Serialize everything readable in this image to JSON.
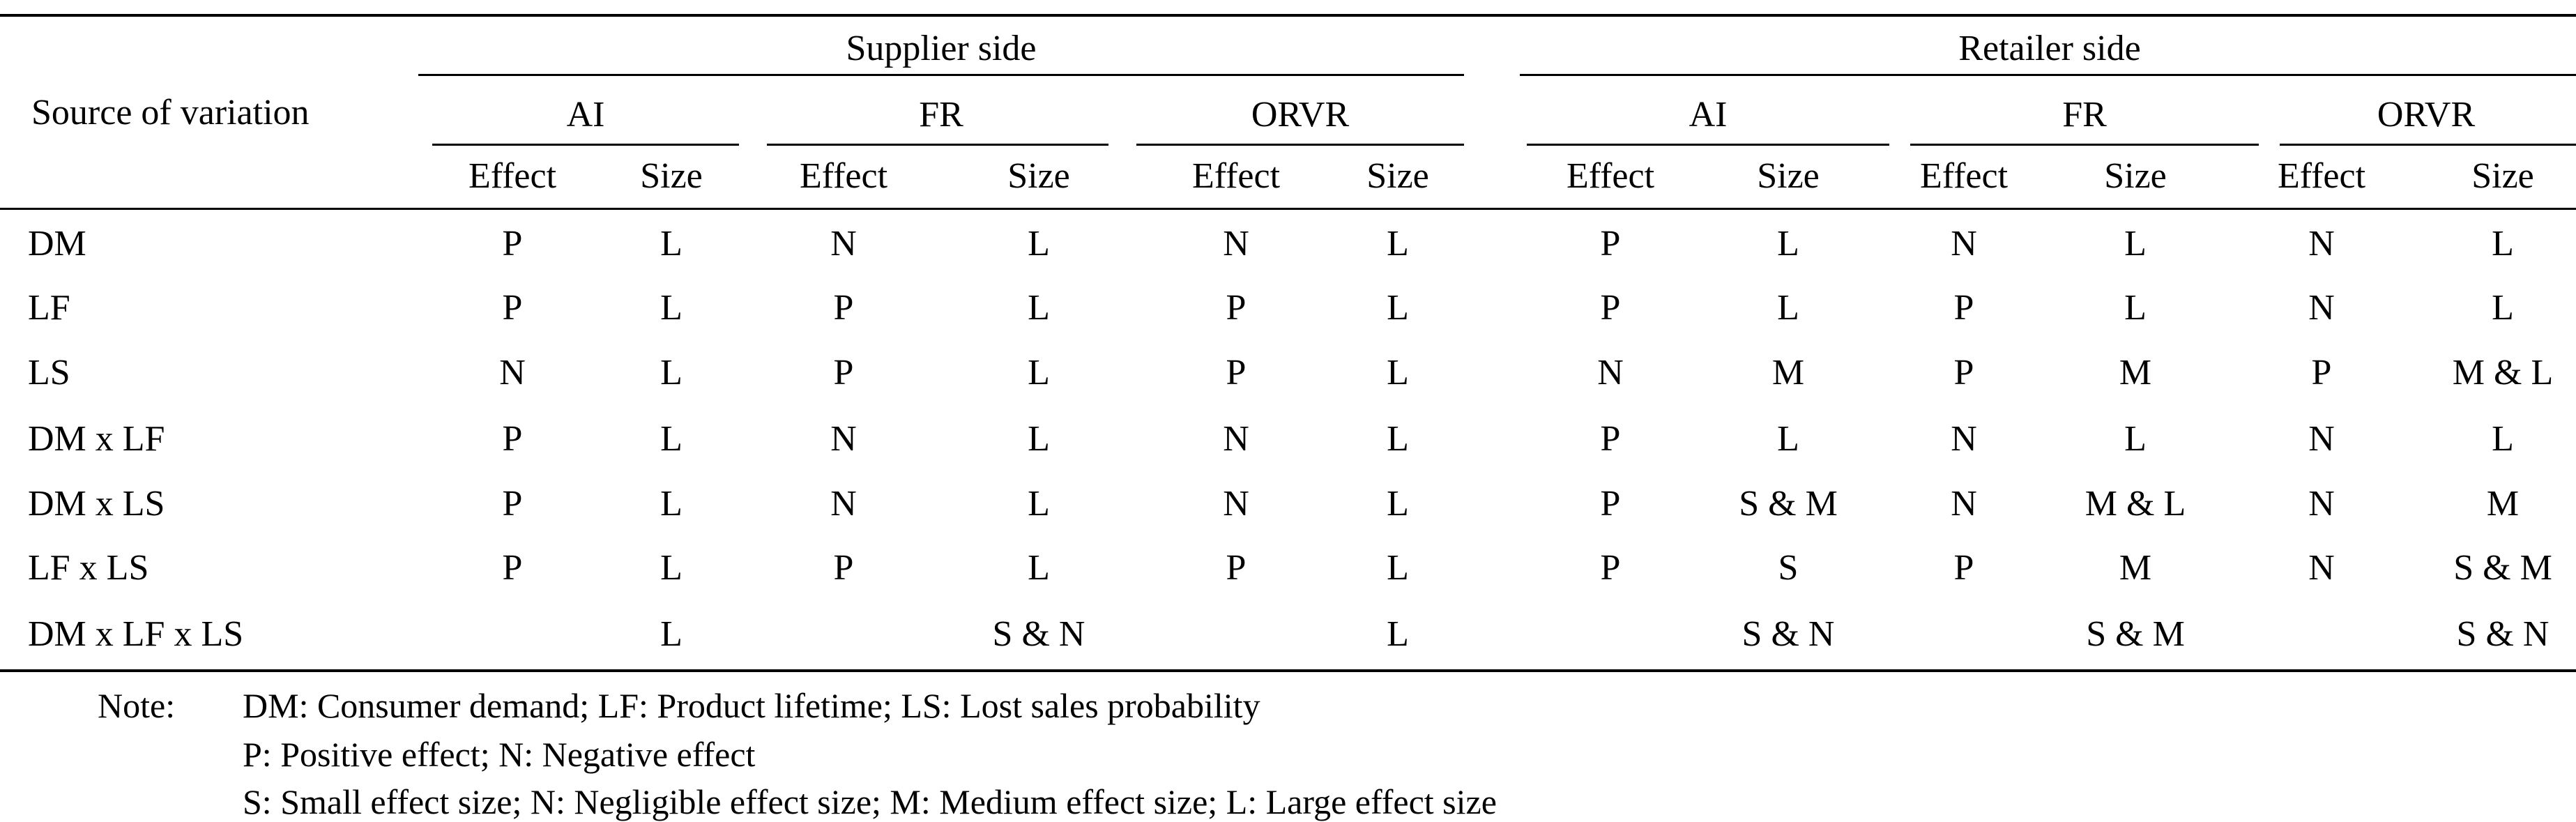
{
  "table": {
    "row_header_label": "Source of variation",
    "groups": [
      {
        "label": "Supplier side",
        "metrics": [
          "AI",
          "FR",
          "ORVR"
        ]
      },
      {
        "label": "Retailer side",
        "metrics": [
          "AI",
          "FR",
          "ORVR"
        ]
      }
    ],
    "sub_headers": [
      "Effect",
      "Size"
    ],
    "rows": [
      {
        "source": "DM",
        "cells": [
          "P",
          "L",
          "N",
          "L",
          "N",
          "L",
          "P",
          "L",
          "N",
          "L",
          "N",
          "L"
        ]
      },
      {
        "source": "LF",
        "cells": [
          "P",
          "L",
          "P",
          "L",
          "P",
          "L",
          "P",
          "L",
          "P",
          "L",
          "N",
          "L"
        ]
      },
      {
        "source": "LS",
        "cells": [
          "N",
          "L",
          "P",
          "L",
          "P",
          "L",
          "N",
          "M",
          "P",
          "M",
          "P",
          "M & L"
        ]
      },
      {
        "source": "DM x LF",
        "cells": [
          "P",
          "L",
          "N",
          "L",
          "N",
          "L",
          "P",
          "L",
          "N",
          "L",
          "N",
          "L"
        ]
      },
      {
        "source": "DM x LS",
        "cells": [
          "P",
          "L",
          "N",
          "L",
          "N",
          "L",
          "P",
          "S & M",
          "N",
          "M & L",
          "N",
          "M"
        ]
      },
      {
        "source": "LF x LS",
        "cells": [
          "P",
          "L",
          "P",
          "L",
          "P",
          "L",
          "P",
          "S",
          "P",
          "M",
          "N",
          "S & M"
        ]
      },
      {
        "source": "DM x LF x LS",
        "cells": [
          "",
          "L",
          "",
          "S & N",
          "",
          "L",
          "",
          "S & N",
          "",
          "S & M",
          "",
          "S & N"
        ]
      }
    ]
  },
  "notes": {
    "label": "Note:",
    "lines": [
      "DM: Consumer demand; LF: Product lifetime; LS: Lost sales probability",
      "P: Positive effect; N: Negative effect",
      "S: Small effect size; N: Negligible effect size; M: Medium effect size; L: Large effect size"
    ]
  }
}
